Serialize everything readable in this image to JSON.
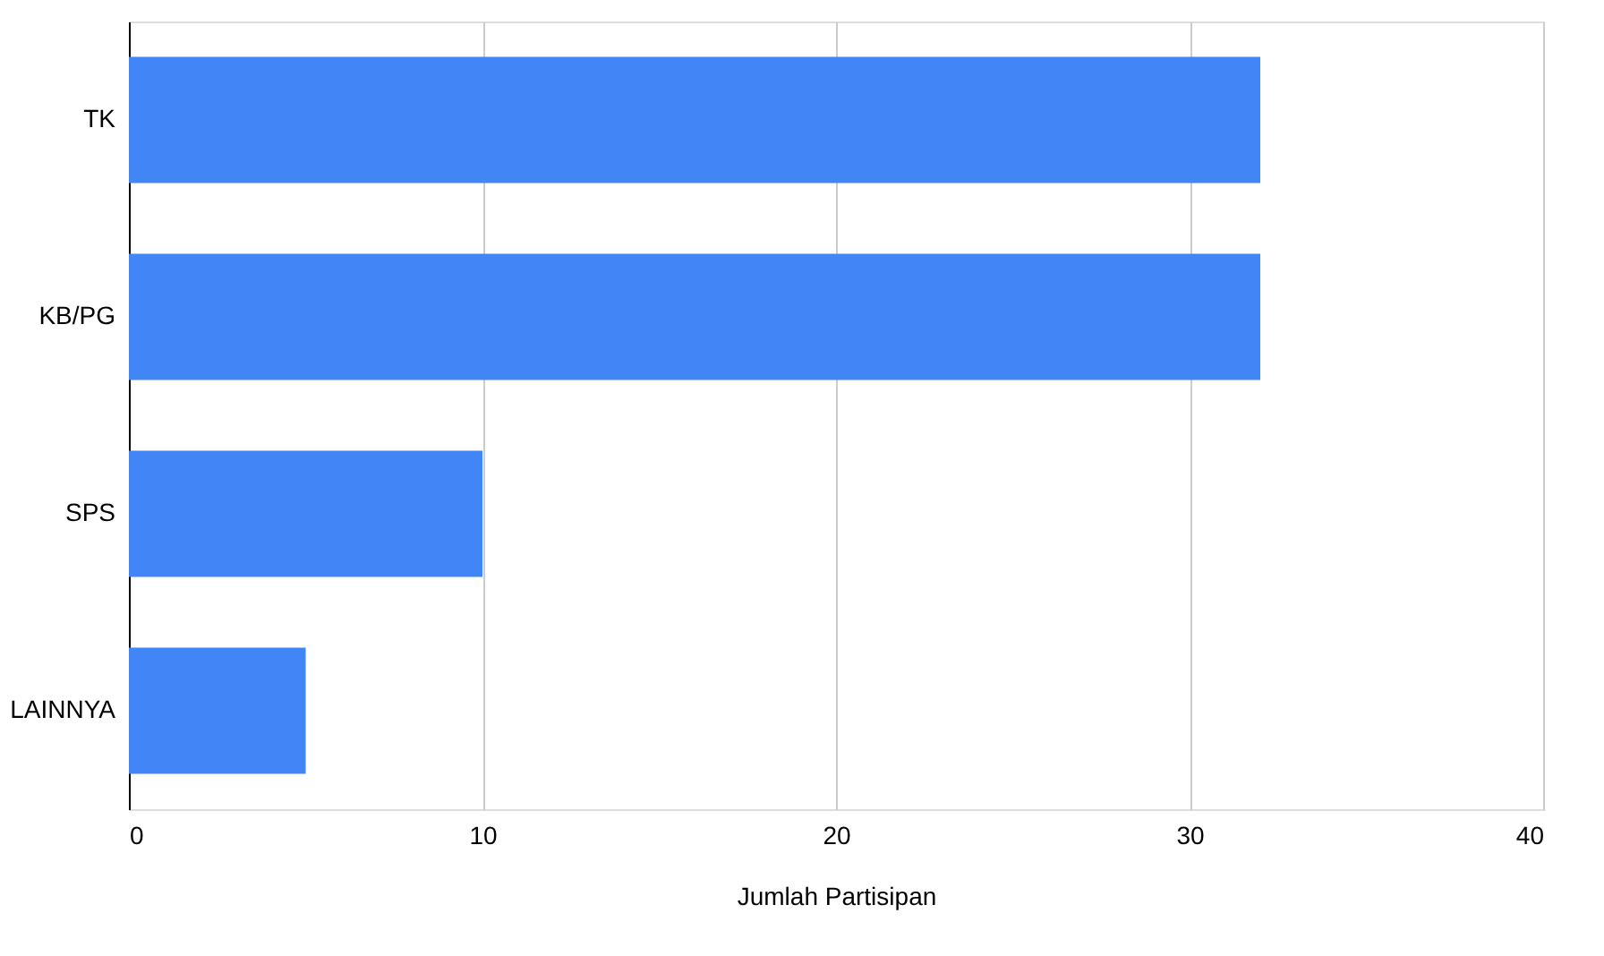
{
  "chart_data": {
    "type": "bar",
    "orientation": "horizontal",
    "categories": [
      "TK",
      "KB/PG",
      "SPS",
      "LAINNYA"
    ],
    "series": [
      {
        "color": "#4285f4",
        "values": [
          32,
          32,
          10,
          5
        ]
      }
    ],
    "xlabel": "Jumlah Partisipan",
    "xlim": [
      0,
      40
    ],
    "xticks": [
      0,
      10,
      20,
      30,
      40
    ],
    "grid": "x",
    "legend": false
  }
}
